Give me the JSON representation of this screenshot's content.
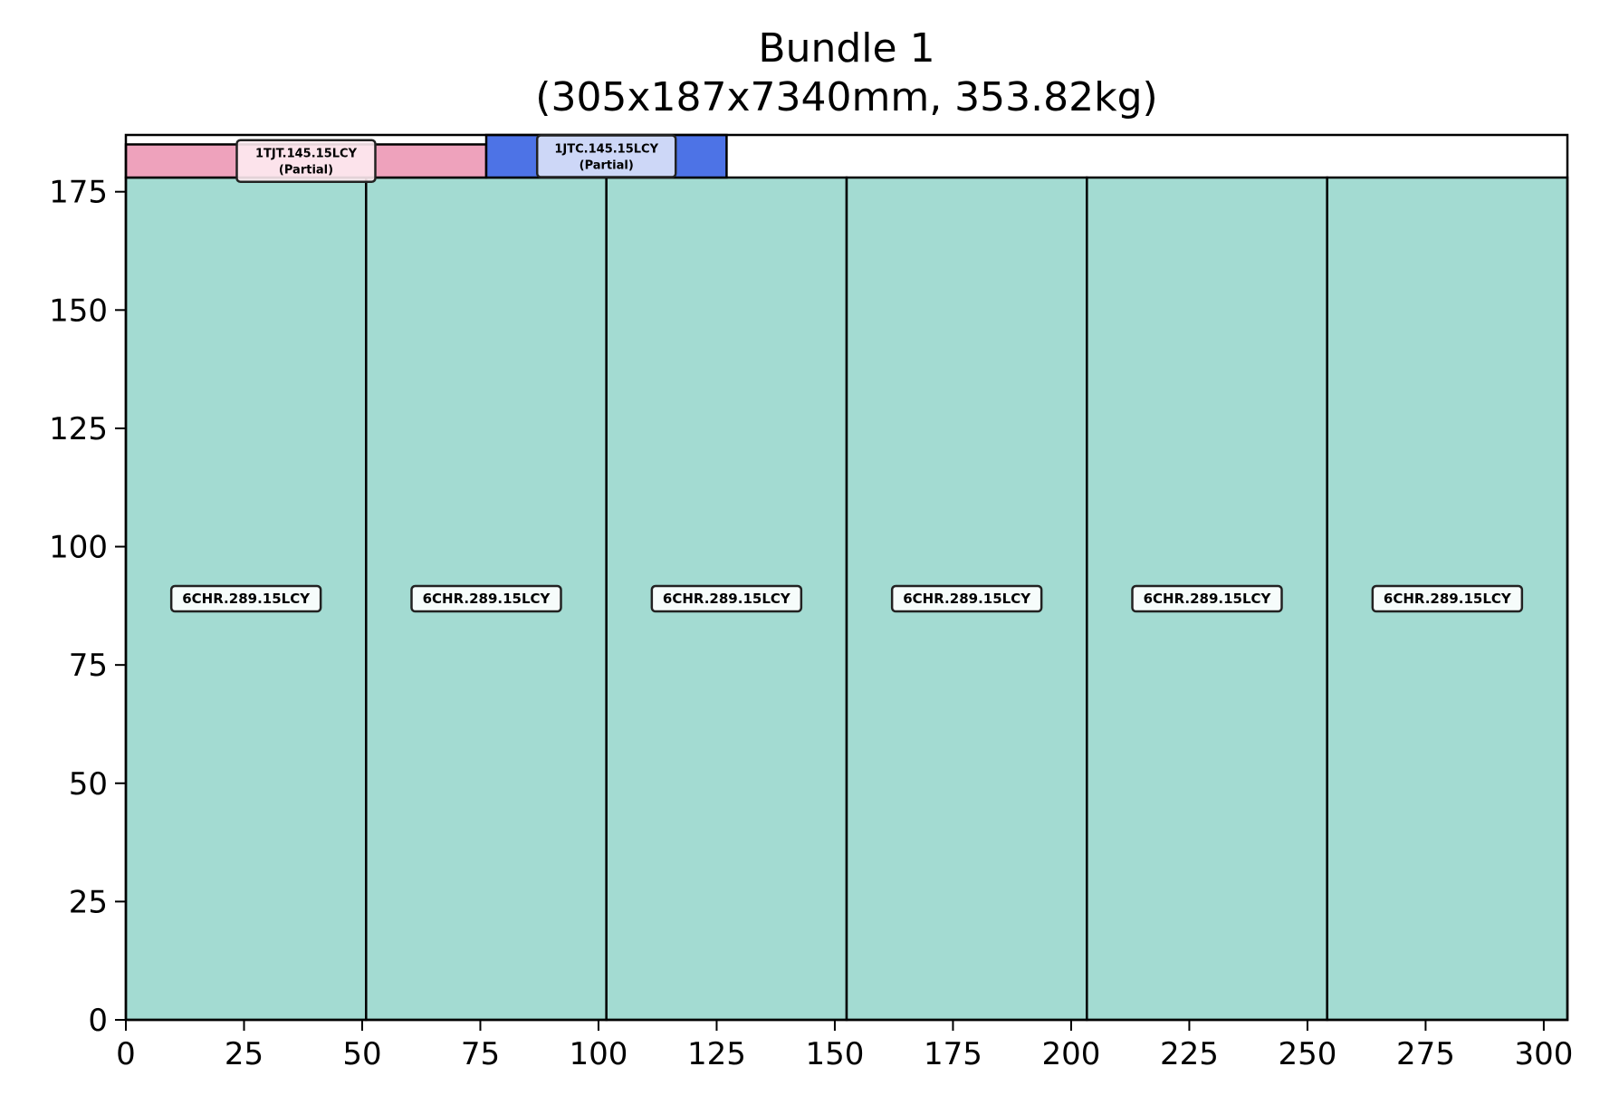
{
  "chart_data": {
    "type": "bar",
    "title": "Bundle 1",
    "subtitle": "(305x187x7340mm, 353.82kg)",
    "xlabel": "",
    "ylabel": "",
    "xlim": [
      0,
      305
    ],
    "ylim": [
      0,
      187
    ],
    "x_ticks": [
      0,
      25,
      50,
      75,
      100,
      125,
      150,
      175,
      200,
      225,
      250,
      275,
      300
    ],
    "y_ticks": [
      0,
      25,
      50,
      75,
      100,
      125,
      150,
      175
    ],
    "grid": false,
    "legend": "none",
    "items": [
      {
        "label": "6CHR.289.15LCY",
        "x0": 0,
        "x1": 50.83,
        "y0": 0,
        "y1": 178,
        "color": "#a3dbd2"
      },
      {
        "label": "6CHR.289.15LCY",
        "x0": 50.83,
        "x1": 101.67,
        "y0": 0,
        "y1": 178,
        "color": "#a3dbd2"
      },
      {
        "label": "6CHR.289.15LCY",
        "x0": 101.67,
        "x1": 152.5,
        "y0": 0,
        "y1": 178,
        "color": "#a3dbd2"
      },
      {
        "label": "6CHR.289.15LCY",
        "x0": 152.5,
        "x1": 203.33,
        "y0": 0,
        "y1": 178,
        "color": "#a3dbd2"
      },
      {
        "label": "6CHR.289.15LCY",
        "x0": 203.33,
        "x1": 254.17,
        "y0": 0,
        "y1": 178,
        "color": "#a3dbd2"
      },
      {
        "label": "6CHR.289.15LCY",
        "x0": 254.17,
        "x1": 305,
        "y0": 0,
        "y1": 178,
        "color": "#a3dbd2"
      },
      {
        "label": "1TJT.145.15LCY",
        "sublabel": "(Partial)",
        "x0": 0,
        "x1": 76.25,
        "y0": 178,
        "y1": 185,
        "color": "#eea2bc",
        "label_bg": "#fdeaf0"
      },
      {
        "label": "1JTC.145.15LCY",
        "sublabel": "(Partial)",
        "x0": 76.25,
        "x1": 127.1,
        "y0": 178,
        "y1": 187,
        "color": "#4d73e6",
        "label_bg": "#dbe2f8"
      }
    ]
  }
}
